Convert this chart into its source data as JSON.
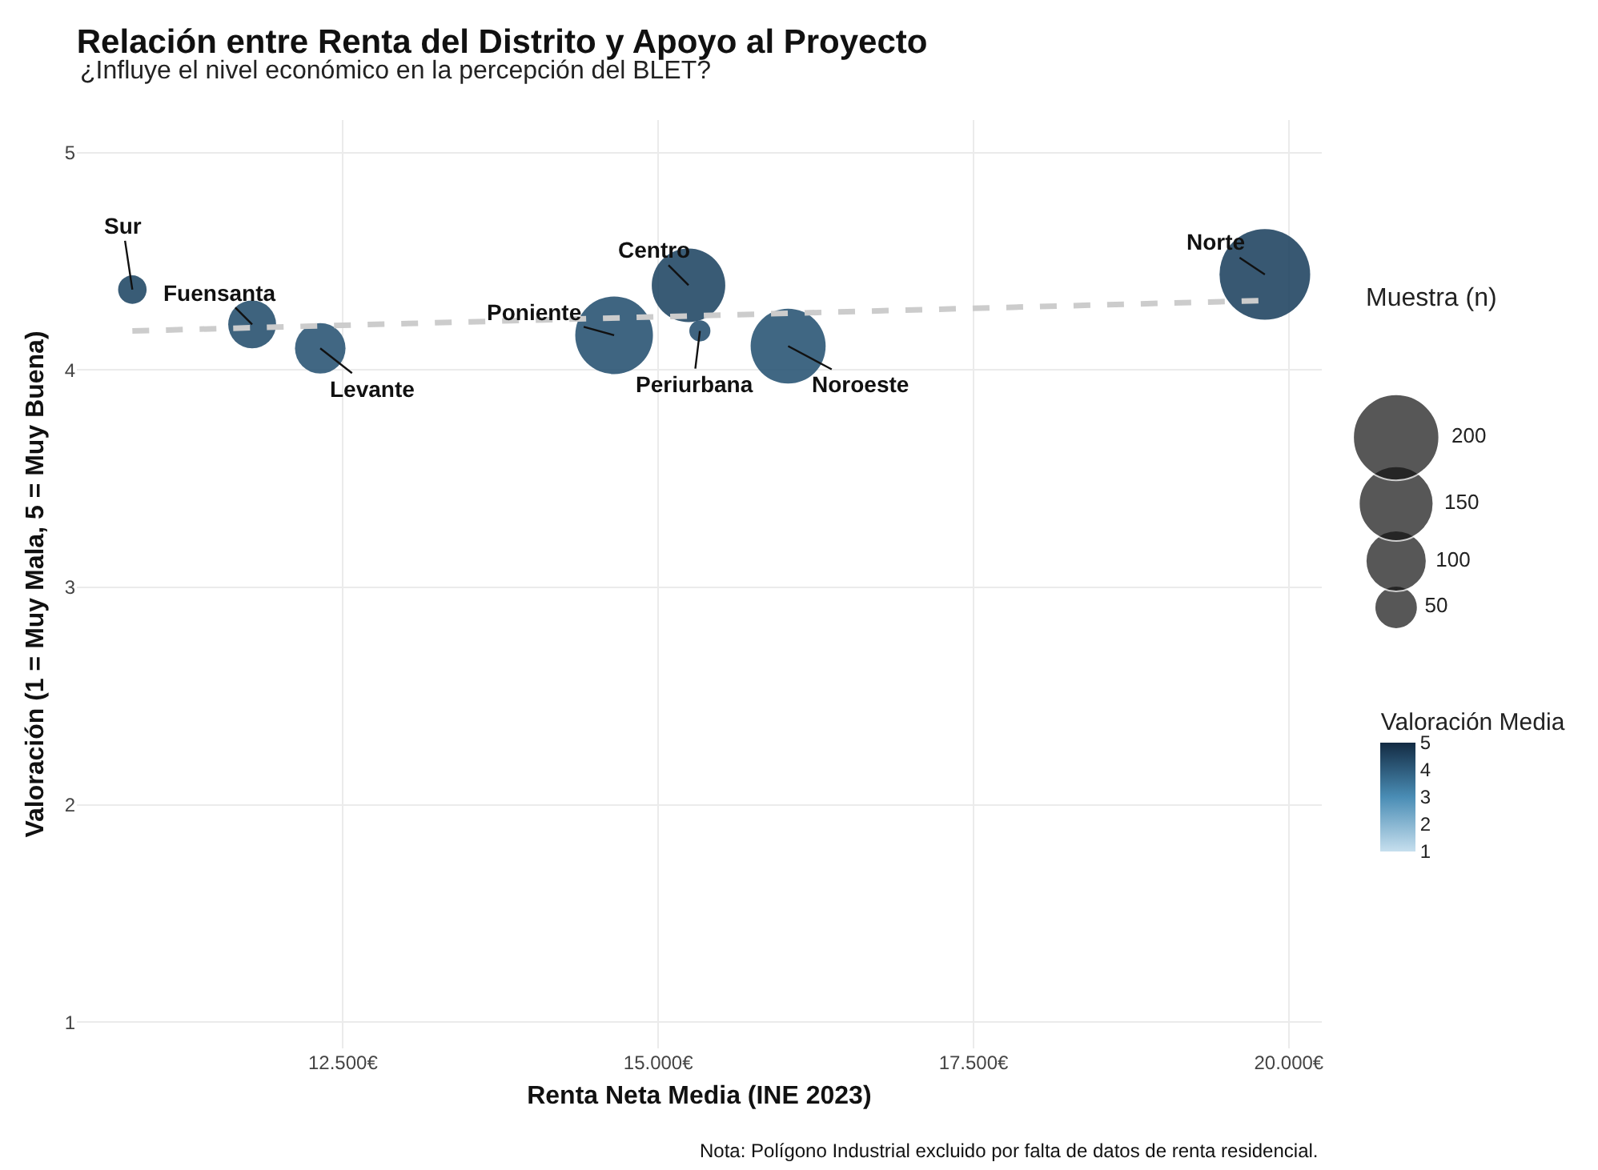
{
  "chart_data": {
    "type": "bubble",
    "title": "Relación entre Renta del Distrito y Apoyo al Proyecto",
    "subtitle": "¿Influye el nivel económico en la percepción del BLET?",
    "xlabel": "Renta Neta Media (INE 2023)",
    "ylabel": "Valoración (1 = Muy Mala, 5 = Muy Buena)",
    "legend_title": "Muestra (n)",
    "clabel": "Valoración Media",
    "x": [
      10830,
      11780,
      12320,
      14650,
      15240,
      15330,
      16030,
      19810
    ],
    "series": [
      {
        "values": [
          4.37,
          4.21,
          4.1,
          4.16,
          4.39,
          4.18,
          4.11,
          4.44
        ],
        "sizes": [
          22,
          62,
          69,
          163,
          146,
          12,
          152,
          222
        ],
        "colors": [
          "#244a67",
          "#295270",
          "#2c5776",
          "#2a5473",
          "#244966",
          "#2a5372",
          "#2b5776",
          "#224663"
        ]
      },
      {
        "type": "line",
        "x": [
          10830,
          19810
        ],
        "values": [
          4.18,
          4.32
        ],
        "color": "#cccccc",
        "line_style": "dashed"
      }
    ],
    "size_legend": [
      50,
      100,
      150,
      200
    ],
    "annotations": [
      {
        "text": "Sur",
        "x": 10830,
        "y": 4.37
      },
      {
        "text": "Fuensanta",
        "x": 11780,
        "y": 4.21
      },
      {
        "text": "Levante",
        "x": 12320,
        "y": 4.1
      },
      {
        "text": "Poniente",
        "x": 14650,
        "y": 4.16
      },
      {
        "text": "Centro",
        "x": 15240,
        "y": 4.39
      },
      {
        "text": "Periurbana",
        "x": 15330,
        "y": 4.18
      },
      {
        "text": "Noroeste",
        "x": 16030,
        "y": 4.11
      },
      {
        "text": "Norte",
        "x": 19810,
        "y": 4.44
      },
      "Nota: Polígono Industrial excluido por falta de datos de renta residencial."
    ],
    "xlim": [
      10390,
      20260
    ],
    "ylim": [
      0.88,
      5.15
    ],
    "xticks": [
      {
        "value": 12500,
        "label": "12.500€"
      },
      {
        "value": 15000,
        "label": "15.000€"
      },
      {
        "value": 17500,
        "label": "17.500€"
      },
      {
        "value": 20000,
        "label": "20.000€"
      }
    ],
    "yticks": [
      1,
      2,
      3,
      4,
      5
    ],
    "clim": [
      1,
      5
    ],
    "cticks": [
      1,
      2,
      3,
      4,
      5
    ],
    "grid": true
  }
}
